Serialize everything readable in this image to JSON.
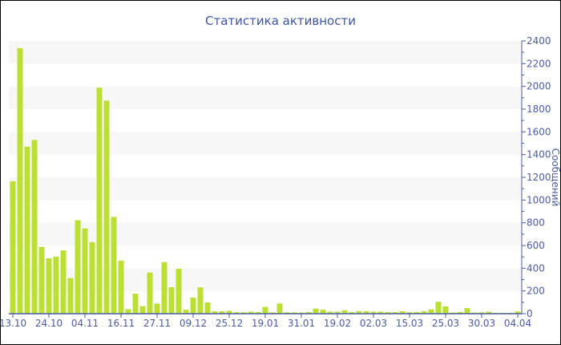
{
  "chart_data": {
    "type": "bar",
    "title": "Статистика активности",
    "xlabel": "",
    "ylabel": "Сообщений",
    "ylim": [
      0,
      2400
    ],
    "yticks": [
      0,
      200,
      400,
      600,
      800,
      1000,
      1200,
      1400,
      1600,
      1800,
      2000,
      2200,
      2400
    ],
    "grid": "alternating horizontal bands",
    "categories": [
      "13.10",
      "",
      "",
      "",
      "",
      "24.10",
      "",
      "",
      "",
      "",
      "04.11",
      "",
      "",
      "",
      "",
      "16.11",
      "",
      "",
      "",
      "",
      "27.11",
      "",
      "",
      "",
      "",
      "09.12",
      "",
      "",
      "",
      "",
      "25.12",
      "",
      "",
      "",
      "",
      "19.01",
      "",
      "",
      "",
      "",
      "31.01",
      "",
      "",
      "",
      "",
      "19.02",
      "",
      "",
      "",
      "",
      "02.03",
      "",
      "",
      "",
      "",
      "15.03",
      "",
      "",
      "",
      "",
      "25.03",
      "",
      "",
      "",
      "",
      "30.03",
      "",
      "",
      "",
      "",
      "04.04"
    ],
    "values": [
      1165,
      2336,
      1470,
      1529,
      588,
      487,
      503,
      557,
      313,
      823,
      750,
      630,
      1988,
      1875,
      852,
      466,
      40,
      176,
      66,
      362,
      89,
      454,
      233,
      395,
      35,
      141,
      232,
      99,
      22,
      22,
      25,
      13,
      13,
      18,
      15,
      60,
      12,
      90,
      12,
      12,
      10,
      15,
      45,
      35,
      18,
      18,
      30,
      15,
      22,
      22,
      18,
      18,
      15,
      15,
      22,
      13,
      15,
      22,
      38,
      105,
      65,
      10,
      15,
      50,
      10,
      12,
      18,
      8,
      8,
      8,
      20
    ],
    "colors": {
      "bar": "#bbe033",
      "axis": "#4a5ca0",
      "title": "#3d55a0",
      "band": "#f7f7f7"
    }
  }
}
